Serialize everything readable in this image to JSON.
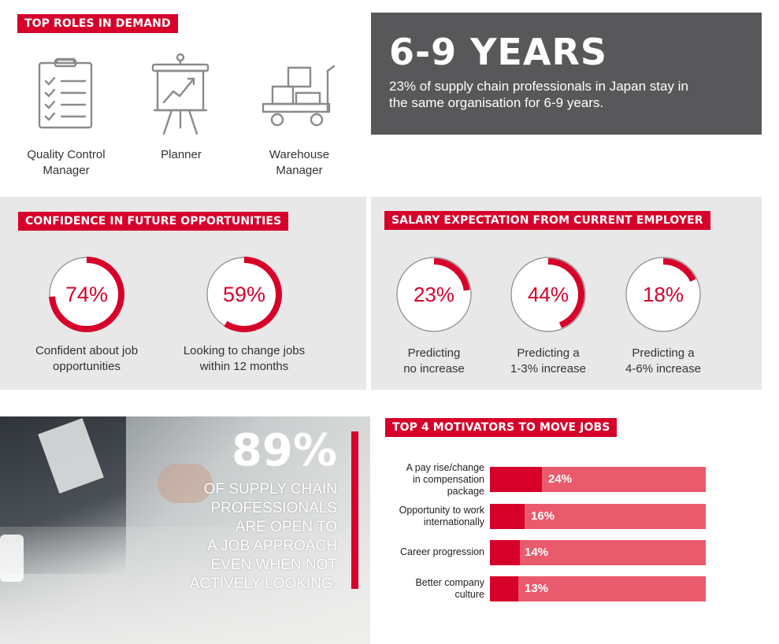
{
  "top_roles": {
    "heading": "TOP ROLES IN DEMAND",
    "roles": [
      {
        "icon": "clipboard-checklist-icon",
        "line1": "Quality Control",
        "line2": "Manager"
      },
      {
        "icon": "chart-easel-icon",
        "line1": "Planner",
        "line2": ""
      },
      {
        "icon": "warehouse-trolley-icon",
        "line1": "Warehouse",
        "line2": "Manager"
      }
    ]
  },
  "tenure": {
    "headline": "6-9 YEARS",
    "text_line1": "23% of supply chain professionals in Japan stay in",
    "text_line2": "the same organisation for 6-9 years."
  },
  "confidence": {
    "heading": "CONFIDENCE IN FUTURE OPPORTUNITIES",
    "items": [
      {
        "value": 74,
        "label": "74%",
        "line1": "Confident about job",
        "line2": "opportunities"
      },
      {
        "value": 59,
        "label": "59%",
        "line1": "Looking to change jobs",
        "line2": "within 12 months"
      }
    ]
  },
  "salary": {
    "heading": "SALARY EXPECTATION FROM CURRENT EMPLOYER",
    "items": [
      {
        "value": 23,
        "label": "23%",
        "line1": "Predicting",
        "line2": "no increase"
      },
      {
        "value": 44,
        "label": "44%",
        "line1": "Predicting a",
        "line2": "1-3% increase"
      },
      {
        "value": 18,
        "label": "18%",
        "line1": "Predicting a",
        "line2": "4-6% increase"
      }
    ]
  },
  "open_to_approach": {
    "big": "89%",
    "lines": [
      "OF SUPPLY CHAIN",
      "PROFESSIONALS",
      "ARE OPEN TO",
      "A JOB APPROACH",
      "EVEN WHEN NOT",
      "ACTIVELY LOOKING."
    ]
  },
  "motivators": {
    "heading": "TOP 4 MOTIVATORS TO MOVE JOBS",
    "items": [
      {
        "label_lines": [
          "A pay rise/change",
          "in compensation",
          "package"
        ],
        "value": 24,
        "value_label": "24%"
      },
      {
        "label_lines": [
          "Opportunity to work",
          "internationally"
        ],
        "value": 16,
        "value_label": "16%"
      },
      {
        "label_lines": [
          "Career progression"
        ],
        "value": 14,
        "value_label": "14%"
      },
      {
        "label_lines": [
          "Better company",
          "culture"
        ],
        "value": 13,
        "value_label": "13%"
      }
    ]
  },
  "colors": {
    "accent_red": "#d6002a",
    "bar_light_red": "#e95a6c",
    "dark_panel": "#58585a",
    "grey_panel": "#e8e8e8"
  }
}
